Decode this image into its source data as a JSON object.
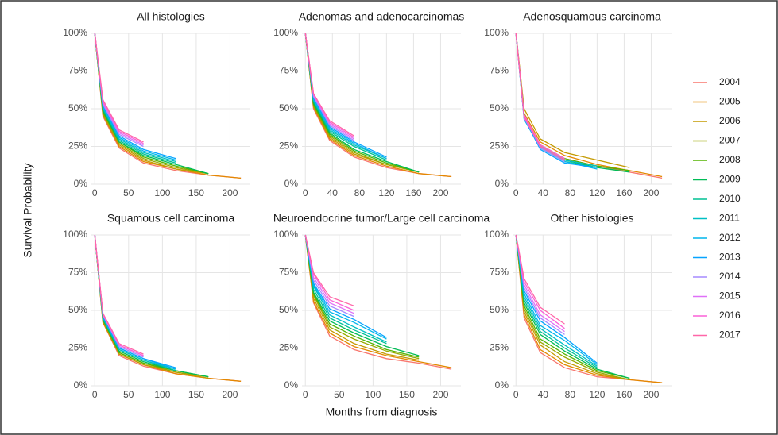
{
  "axis_labels": {
    "x": "Months from diagnosis",
    "y": "Survival Probability"
  },
  "legend": {
    "names": [
      "2004",
      "2005",
      "2006",
      "2007",
      "2008",
      "2009",
      "2010",
      "2011",
      "2012",
      "2013",
      "2014",
      "2015",
      "2016",
      "2017"
    ],
    "colors": [
      "#F8766D",
      "#E38900",
      "#C49A00",
      "#99A800",
      "#53B400",
      "#00BC56",
      "#00C094",
      "#00BFC4",
      "#00B6EB",
      "#06A4FF",
      "#A58AFF",
      "#DF70F8",
      "#FB61D7",
      "#FF66A8"
    ]
  },
  "chart_data": [
    {
      "type": "line",
      "title": "All histologies",
      "x": [
        0,
        12,
        36,
        72,
        120,
        168,
        216
      ],
      "xlim": [
        -5,
        230
      ],
      "xticks": [
        0,
        50,
        100,
        150,
        200
      ],
      "ylim": [
        0,
        100
      ],
      "yticks": [
        {
          "value": 0,
          "label": "0%"
        },
        {
          "value": 25,
          "label": "25%"
        },
        {
          "value": 50,
          "label": "50%"
        },
        {
          "value": 75,
          "label": "75%"
        },
        {
          "value": 100,
          "label": "100%"
        }
      ],
      "grid": true,
      "series": [
        {
          "values": [
            100,
            45,
            24,
            14,
            9,
            6,
            4
          ]
        },
        {
          "values": [
            100,
            46,
            25,
            15,
            10,
            6,
            4
          ]
        },
        {
          "values": [
            100,
            46,
            26,
            16,
            10,
            7,
            null
          ]
        },
        {
          "values": [
            100,
            47,
            27,
            17,
            11,
            7,
            null
          ]
        },
        {
          "values": [
            100,
            48,
            28,
            18,
            12,
            7,
            null
          ]
        },
        {
          "values": [
            100,
            49,
            28,
            19,
            13,
            7,
            null
          ]
        },
        {
          "values": [
            100,
            50,
            29,
            20,
            14,
            null,
            null
          ]
        },
        {
          "values": [
            100,
            51,
            30,
            21,
            15,
            null,
            null
          ]
        },
        {
          "values": [
            100,
            51,
            31,
            22,
            16,
            null,
            null
          ]
        },
        {
          "values": [
            100,
            52,
            32,
            23,
            17,
            null,
            null
          ]
        },
        {
          "values": [
            100,
            53,
            33,
            25,
            null,
            null,
            null
          ]
        },
        {
          "values": [
            100,
            54,
            34,
            26,
            null,
            null,
            null
          ]
        },
        {
          "values": [
            100,
            55,
            35,
            27,
            null,
            null,
            null
          ]
        },
        {
          "values": [
            100,
            56,
            36,
            28,
            null,
            null,
            null
          ]
        }
      ]
    },
    {
      "type": "line",
      "title": "Adenomas and adenocarcinomas",
      "x": [
        0,
        12,
        36,
        72,
        120,
        168,
        216
      ],
      "xlim": [
        -5,
        230
      ],
      "xticks": [
        0,
        40,
        80,
        120,
        160,
        200
      ],
      "ylim": [
        0,
        100
      ],
      "yticks": [
        {
          "value": 0,
          "label": "0%"
        },
        {
          "value": 25,
          "label": "25%"
        },
        {
          "value": 50,
          "label": "50%"
        },
        {
          "value": 75,
          "label": "75%"
        },
        {
          "value": 100,
          "label": "100%"
        }
      ],
      "grid": true,
      "series": [
        {
          "values": [
            100,
            50,
            29,
            18,
            11,
            7,
            5
          ]
        },
        {
          "values": [
            100,
            51,
            30,
            19,
            12,
            7,
            5
          ]
        },
        {
          "values": [
            100,
            52,
            31,
            20,
            13,
            8,
            null
          ]
        },
        {
          "values": [
            100,
            52,
            32,
            21,
            13,
            8,
            null
          ]
        },
        {
          "values": [
            100,
            53,
            33,
            22,
            14,
            8,
            null
          ]
        },
        {
          "values": [
            100,
            54,
            34,
            23,
            15,
            8,
            null
          ]
        },
        {
          "values": [
            100,
            55,
            35,
            25,
            16,
            null,
            null
          ]
        },
        {
          "values": [
            100,
            56,
            36,
            26,
            17,
            null,
            null
          ]
        },
        {
          "values": [
            100,
            56,
            37,
            27,
            17,
            null,
            null
          ]
        },
        {
          "values": [
            100,
            57,
            38,
            28,
            18,
            null,
            null
          ]
        },
        {
          "values": [
            100,
            58,
            39,
            29,
            null,
            null,
            null
          ]
        },
        {
          "values": [
            100,
            59,
            40,
            30,
            null,
            null,
            null
          ]
        },
        {
          "values": [
            100,
            60,
            41,
            31,
            null,
            null,
            null
          ]
        },
        {
          "values": [
            100,
            60,
            42,
            32,
            null,
            null,
            null
          ]
        }
      ]
    },
    {
      "type": "line",
      "title": "Adenosquamous carcinoma",
      "x": [
        0,
        12,
        36,
        72,
        120,
        168,
        216
      ],
      "xlim": [
        -5,
        230
      ],
      "xticks": [
        0,
        40,
        80,
        120,
        160,
        200
      ],
      "ylim": [
        0,
        100
      ],
      "yticks": [
        {
          "value": 0,
          "label": "0%"
        },
        {
          "value": 25,
          "label": "25%"
        },
        {
          "value": 50,
          "label": "50%"
        },
        {
          "value": 75,
          "label": "75%"
        },
        {
          "value": 100,
          "label": "100%"
        }
      ],
      "grid": true,
      "series": [
        {
          "values": [
            100,
            46,
            26,
            17,
            12,
            8,
            4
          ]
        },
        {
          "values": [
            100,
            47,
            28,
            19,
            13,
            9,
            5
          ]
        },
        {
          "values": [
            100,
            50,
            30,
            21,
            16,
            11,
            null
          ]
        },
        {
          "values": [
            100,
            44,
            25,
            16,
            12,
            9,
            null
          ]
        },
        {
          "values": [
            100,
            45,
            26,
            17,
            12,
            9,
            null
          ]
        },
        {
          "values": [
            100,
            46,
            25,
            16,
            11,
            8,
            null
          ]
        },
        {
          "values": [
            100,
            44,
            24,
            15,
            11,
            null,
            null
          ]
        },
        {
          "values": [
            100,
            45,
            25,
            16,
            12,
            null,
            null
          ]
        },
        {
          "values": [
            100,
            43,
            24,
            15,
            10,
            null,
            null
          ]
        },
        {
          "values": [
            100,
            44,
            23,
            14,
            11,
            null,
            null
          ]
        },
        {
          "values": [
            100,
            45,
            24,
            15,
            null,
            null,
            null
          ]
        },
        {
          "values": [
            100,
            44,
            25,
            16,
            null,
            null,
            null
          ]
        },
        {
          "values": [
            100,
            46,
            26,
            17,
            null,
            null,
            null
          ]
        },
        {
          "values": [
            100,
            45,
            25,
            16,
            null,
            null,
            null
          ]
        }
      ]
    },
    {
      "type": "line",
      "title": "Squamous cell carcinoma",
      "x": [
        0,
        12,
        36,
        72,
        120,
        168,
        216
      ],
      "xlim": [
        -5,
        230
      ],
      "xticks": [
        0,
        50,
        100,
        150,
        200
      ],
      "ylim": [
        0,
        100
      ],
      "yticks": [
        {
          "value": 0,
          "label": "0%"
        },
        {
          "value": 25,
          "label": "25%"
        },
        {
          "value": 50,
          "label": "50%"
        },
        {
          "value": 75,
          "label": "75%"
        },
        {
          "value": 100,
          "label": "100%"
        }
      ],
      "grid": true,
      "series": [
        {
          "values": [
            100,
            42,
            20,
            13,
            8,
            5,
            3
          ]
        },
        {
          "values": [
            100,
            42,
            21,
            14,
            8,
            5,
            3
          ]
        },
        {
          "values": [
            100,
            43,
            21,
            14,
            9,
            5,
            null
          ]
        },
        {
          "values": [
            100,
            43,
            22,
            15,
            9,
            6,
            null
          ]
        },
        {
          "values": [
            100,
            44,
            22,
            15,
            10,
            6,
            null
          ]
        },
        {
          "values": [
            100,
            44,
            23,
            16,
            10,
            6,
            null
          ]
        },
        {
          "values": [
            100,
            45,
            24,
            17,
            10,
            null,
            null
          ]
        },
        {
          "values": [
            100,
            45,
            24,
            17,
            11,
            null,
            null
          ]
        },
        {
          "values": [
            100,
            46,
            25,
            18,
            11,
            null,
            null
          ]
        },
        {
          "values": [
            100,
            46,
            25,
            18,
            12,
            null,
            null
          ]
        },
        {
          "values": [
            100,
            47,
            26,
            19,
            null,
            null,
            null
          ]
        },
        {
          "values": [
            100,
            47,
            27,
            20,
            null,
            null,
            null
          ]
        },
        {
          "values": [
            100,
            48,
            27,
            20,
            null,
            null,
            null
          ]
        },
        {
          "values": [
            100,
            48,
            28,
            21,
            null,
            null,
            null
          ]
        }
      ]
    },
    {
      "type": "line",
      "title": "Neuroendocrine tumor/Large cell carcinoma",
      "x": [
        0,
        12,
        36,
        72,
        120,
        168,
        216
      ],
      "xlim": [
        -5,
        230
      ],
      "xticks": [
        0,
        50,
        100,
        150,
        200
      ],
      "ylim": [
        0,
        100
      ],
      "yticks": [
        {
          "value": 0,
          "label": "0%"
        },
        {
          "value": 25,
          "label": "25%"
        },
        {
          "value": 50,
          "label": "50%"
        },
        {
          "value": 75,
          "label": "75%"
        },
        {
          "value": 100,
          "label": "100%"
        }
      ],
      "grid": true,
      "series": [
        {
          "values": [
            100,
            55,
            33,
            24,
            18,
            15,
            11
          ]
        },
        {
          "values": [
            100,
            56,
            35,
            26,
            20,
            16,
            12
          ]
        },
        {
          "values": [
            100,
            58,
            37,
            28,
            21,
            17,
            null
          ]
        },
        {
          "values": [
            100,
            60,
            39,
            31,
            23,
            18,
            null
          ]
        },
        {
          "values": [
            100,
            61,
            41,
            33,
            24,
            19,
            null
          ]
        },
        {
          "values": [
            100,
            62,
            43,
            35,
            26,
            20,
            null
          ]
        },
        {
          "values": [
            100,
            64,
            45,
            37,
            28,
            null,
            null
          ]
        },
        {
          "values": [
            100,
            66,
            47,
            39,
            29,
            null,
            null
          ]
        },
        {
          "values": [
            100,
            67,
            49,
            42,
            31,
            null,
            null
          ]
        },
        {
          "values": [
            100,
            68,
            51,
            44,
            32,
            null,
            null
          ]
        },
        {
          "values": [
            100,
            70,
            53,
            46,
            null,
            null,
            null
          ]
        },
        {
          "values": [
            100,
            72,
            55,
            48,
            null,
            null,
            null
          ]
        },
        {
          "values": [
            100,
            74,
            57,
            50,
            null,
            null,
            null
          ]
        },
        {
          "values": [
            100,
            75,
            59,
            53,
            null,
            null,
            null
          ]
        }
      ]
    },
    {
      "type": "line",
      "title": "Other histologies",
      "x": [
        0,
        12,
        36,
        72,
        120,
        168,
        216
      ],
      "xlim": [
        -5,
        230
      ],
      "xticks": [
        0,
        40,
        80,
        120,
        160,
        200
      ],
      "ylim": [
        0,
        100
      ],
      "yticks": [
        {
          "value": 0,
          "label": "0%"
        },
        {
          "value": 25,
          "label": "25%"
        },
        {
          "value": 50,
          "label": "50%"
        },
        {
          "value": 75,
          "label": "75%"
        },
        {
          "value": 100,
          "label": "100%"
        }
      ],
      "grid": true,
      "series": [
        {
          "values": [
            100,
            45,
            22,
            12,
            6,
            4,
            2
          ]
        },
        {
          "values": [
            100,
            47,
            24,
            14,
            7,
            4,
            2
          ]
        },
        {
          "values": [
            100,
            49,
            27,
            16,
            8,
            4,
            null
          ]
        },
        {
          "values": [
            100,
            51,
            29,
            19,
            9,
            4,
            null
          ]
        },
        {
          "values": [
            100,
            53,
            31,
            21,
            10,
            5,
            null
          ]
        },
        {
          "values": [
            100,
            55,
            34,
            23,
            11,
            5,
            null
          ]
        },
        {
          "values": [
            100,
            57,
            36,
            25,
            12,
            null,
            null
          ]
        },
        {
          "values": [
            100,
            59,
            38,
            27,
            13,
            null,
            null
          ]
        },
        {
          "values": [
            100,
            61,
            40,
            30,
            14,
            null,
            null
          ]
        },
        {
          "values": [
            100,
            63,
            43,
            32,
            15,
            null,
            null
          ]
        },
        {
          "values": [
            100,
            65,
            45,
            34,
            null,
            null,
            null
          ]
        },
        {
          "values": [
            100,
            67,
            47,
            36,
            null,
            null,
            null
          ]
        },
        {
          "values": [
            100,
            69,
            50,
            38,
            null,
            null,
            null
          ]
        },
        {
          "values": [
            100,
            71,
            52,
            41,
            null,
            null,
            null
          ]
        }
      ]
    }
  ]
}
